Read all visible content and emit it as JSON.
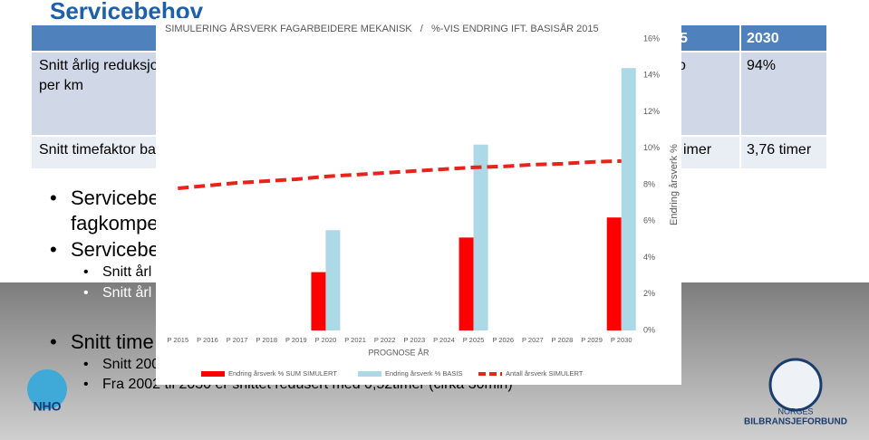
{
  "slide": {
    "title": "Servicebehov",
    "table": {
      "header": [
        "5",
        "2030"
      ],
      "rows": [
        [
          "Snitt årlig reduksjo",
          "per km",
          "o",
          "94%"
        ],
        [
          "Snitt timefaktor ba",
          "imer",
          "3,76 timer"
        ]
      ]
    },
    "bullets": [
      "Servicebe",
      "fagkompe",
      "Servicebe",
      "Snitt årl",
      "Snitt årl",
      "Snitt time",
      "Snitt 200",
      "Fra 2002 til 2030 er snittet redusert med 0,52timer (cirka 30min)"
    ],
    "logos": {
      "left": "NHO",
      "right_top": "NORGES",
      "right_bottom": "BILBRANSJEFORBUND"
    }
  },
  "chart_data": {
    "type": "bar",
    "title": "SIMULERING ÅRSVERK FAGARBEIDERE MEKANISK   /   %-VIS ENDRING IFT. BASISÅR 2015",
    "x_label": "PROGNOSE ÅR",
    "y_label": "Endring årsverk %",
    "categories": [
      "P 2015",
      "P 2016",
      "P 2017",
      "P 2018",
      "P 2019",
      "P 2020",
      "P 2021",
      "P 2022",
      "P 2023",
      "P 2024",
      "P 2025",
      "P 2026",
      "P 2027",
      "P 2028",
      "P 2029",
      "P 2030"
    ],
    "series": [
      {
        "name": "Endring årsverk % SUM SIMULERT",
        "color": "#ff0000",
        "values": [
          null,
          null,
          null,
          null,
          null,
          3.2,
          null,
          null,
          null,
          null,
          5.1,
          null,
          null,
          null,
          null,
          6.2
        ]
      },
      {
        "name": "Endring årsverk % BASIS",
        "color": "#add8e6",
        "values": [
          null,
          null,
          null,
          null,
          null,
          5.5,
          null,
          null,
          null,
          null,
          10.2,
          null,
          null,
          null,
          null,
          14.4
        ]
      },
      {
        "name": "Antall årsverk SIMULERT",
        "color": "#e8231b",
        "type": "line",
        "values": [
          7.8,
          7.95,
          8.1,
          8.2,
          8.3,
          8.45,
          8.55,
          8.65,
          8.75,
          8.85,
          8.95,
          9.0,
          9.1,
          9.15,
          9.25,
          9.3
        ]
      }
    ],
    "ylim": [
      0,
      16
    ],
    "yticks": [
      {
        "value": 0,
        "label": "0%"
      },
      {
        "value": 2,
        "label": "2%"
      },
      {
        "value": 4,
        "label": "4%"
      },
      {
        "value": 6,
        "label": "6%"
      },
      {
        "value": 8,
        "label": "8%"
      },
      {
        "value": 10,
        "label": "10%"
      },
      {
        "value": 12,
        "label": "12%"
      },
      {
        "value": 14,
        "label": "14%"
      },
      {
        "value": 16,
        "label": "16%"
      }
    ],
    "y_axis_side": "right",
    "grid": false
  }
}
